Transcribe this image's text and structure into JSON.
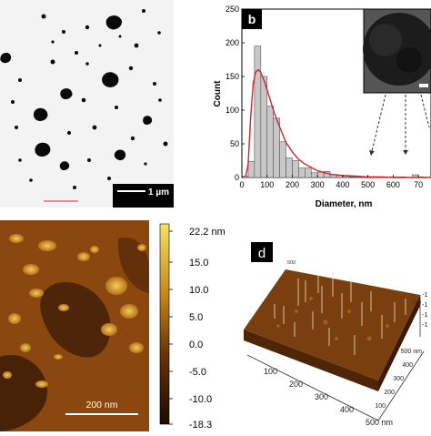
{
  "panel_a": {
    "scalebar_text": "1 µm"
  },
  "panel_b": {
    "label": "b",
    "inset_scalebar_text": ""
  },
  "panel_c": {
    "scalebar_text": "200 nm",
    "colorbar_ticks": [
      "22.2 nm",
      "15.0",
      "10.0",
      "5.0",
      "0.0",
      "-5.0",
      "-10.0",
      "-18.3"
    ],
    "colors": {
      "high": "#f4e266",
      "mid": "#c9851c",
      "low": "#1a0b03"
    }
  },
  "panel_d": {
    "label": "d",
    "x_ticks": [
      "100",
      "200",
      "300",
      "400",
      "500 nm"
    ],
    "y_ticks": [
      "100",
      "200",
      "300",
      "400",
      "500 nm"
    ],
    "z_ticks": [
      "-1",
      "-1",
      "-1",
      "-1"
    ],
    "corner_ticks": [
      "500",
      "500"
    ]
  },
  "chart_data": {
    "type": "bar",
    "title": "",
    "xlabel": "Diameter, nm",
    "ylabel": "Count",
    "xlim": [
      0,
      750
    ],
    "ylim": [
      0,
      250
    ],
    "x_ticks": [
      "0",
      "100",
      "200",
      "300",
      "400",
      "500",
      "600",
      "70"
    ],
    "y_ticks": [
      "0",
      "50",
      "100",
      "150",
      "200",
      "250"
    ],
    "bin_width": 25,
    "bin_starts": [
      0,
      25,
      50,
      75,
      100,
      125,
      150,
      175,
      200,
      225,
      250,
      275,
      300,
      325,
      350,
      375,
      400,
      425,
      450,
      475,
      500,
      525,
      550,
      575,
      600,
      625,
      650,
      675,
      700,
      725
    ],
    "values": [
      2,
      24,
      195,
      150,
      106,
      88,
      53,
      29,
      25,
      14,
      14,
      7,
      8,
      9,
      4,
      3,
      2,
      1,
      1,
      1,
      1,
      1,
      1,
      1,
      1,
      1,
      0,
      4,
      1,
      0
    ],
    "fit_curve": {
      "x": [
        15,
        25,
        35,
        45,
        55,
        65,
        75,
        90,
        110,
        130,
        150,
        175,
        200,
        225,
        250,
        300,
        350,
        400,
        450,
        500,
        550,
        600,
        650,
        700,
        750
      ],
      "y": [
        1,
        20,
        90,
        140,
        157,
        160,
        156,
        142,
        118,
        94,
        75,
        52,
        38,
        27,
        20,
        10,
        5,
        3,
        2,
        1,
        1,
        0,
        0,
        0,
        0
      ]
    },
    "colors": {
      "bars": "#c8c8c8",
      "fit": "#d9232a"
    }
  }
}
